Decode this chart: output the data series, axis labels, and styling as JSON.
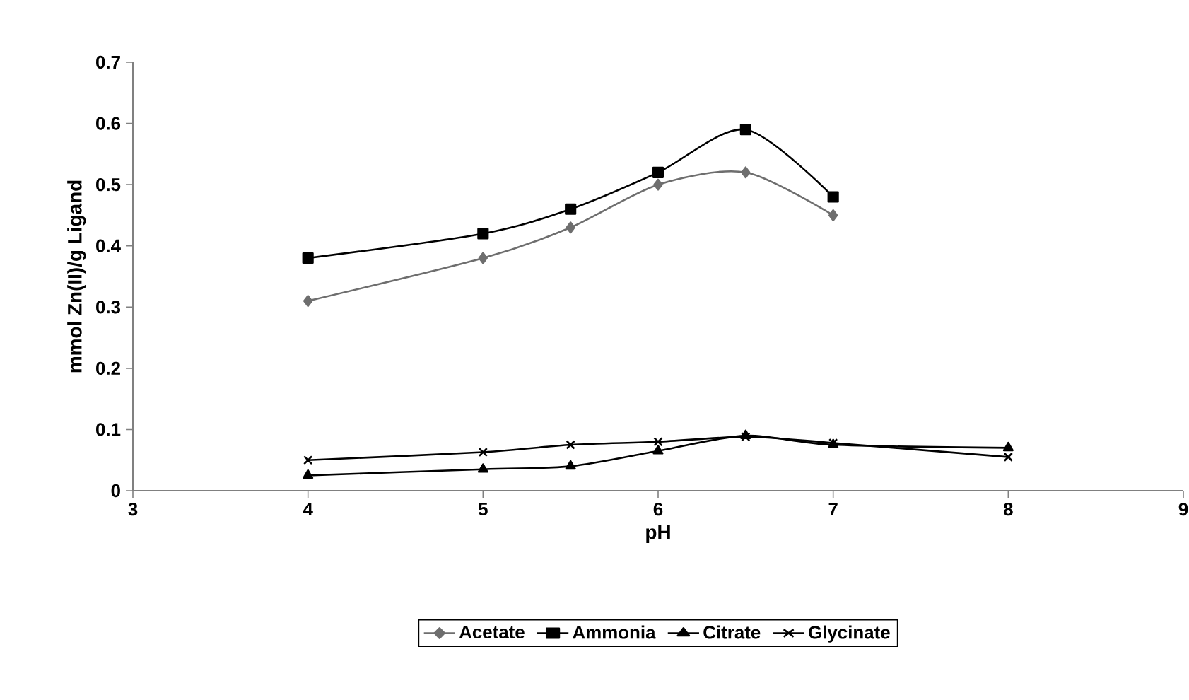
{
  "chart_data": {
    "type": "line",
    "xlabel": "pH",
    "ylabel": "mmol Zn(II)/g Ligand",
    "xlim": [
      3,
      9
    ],
    "xticks": [
      3,
      4,
      5,
      6,
      7,
      8,
      9
    ],
    "ylim": [
      0,
      0.7
    ],
    "yticks": [
      0,
      0.1,
      0.2,
      0.3,
      0.4,
      0.5,
      0.6,
      0.7
    ],
    "grid": false,
    "legend": "bottom",
    "series": [
      {
        "name": "Acetate",
        "color": "#6e6e6e",
        "marker": "diamond",
        "x": [
          4,
          5,
          5.5,
          6,
          6.5,
          7
        ],
        "values": [
          0.31,
          0.38,
          0.43,
          0.5,
          0.52,
          0.45
        ]
      },
      {
        "name": "Ammonia",
        "color": "#000000",
        "marker": "square",
        "x": [
          4,
          5,
          5.5,
          6,
          6.5,
          7
        ],
        "values": [
          0.38,
          0.42,
          0.46,
          0.52,
          0.59,
          0.48
        ]
      },
      {
        "name": "Citrate",
        "color": "#000000",
        "marker": "triangle",
        "x": [
          4,
          5,
          5.5,
          6,
          6.5,
          7,
          8
        ],
        "values": [
          0.025,
          0.035,
          0.04,
          0.065,
          0.09,
          0.075,
          0.07
        ]
      },
      {
        "name": "Glycinate",
        "color": "#000000",
        "marker": "cross",
        "x": [
          4,
          5,
          5.5,
          6,
          6.5,
          7,
          8
        ],
        "values": [
          0.05,
          0.063,
          0.075,
          0.08,
          0.088,
          0.078,
          0.055
        ]
      }
    ]
  }
}
